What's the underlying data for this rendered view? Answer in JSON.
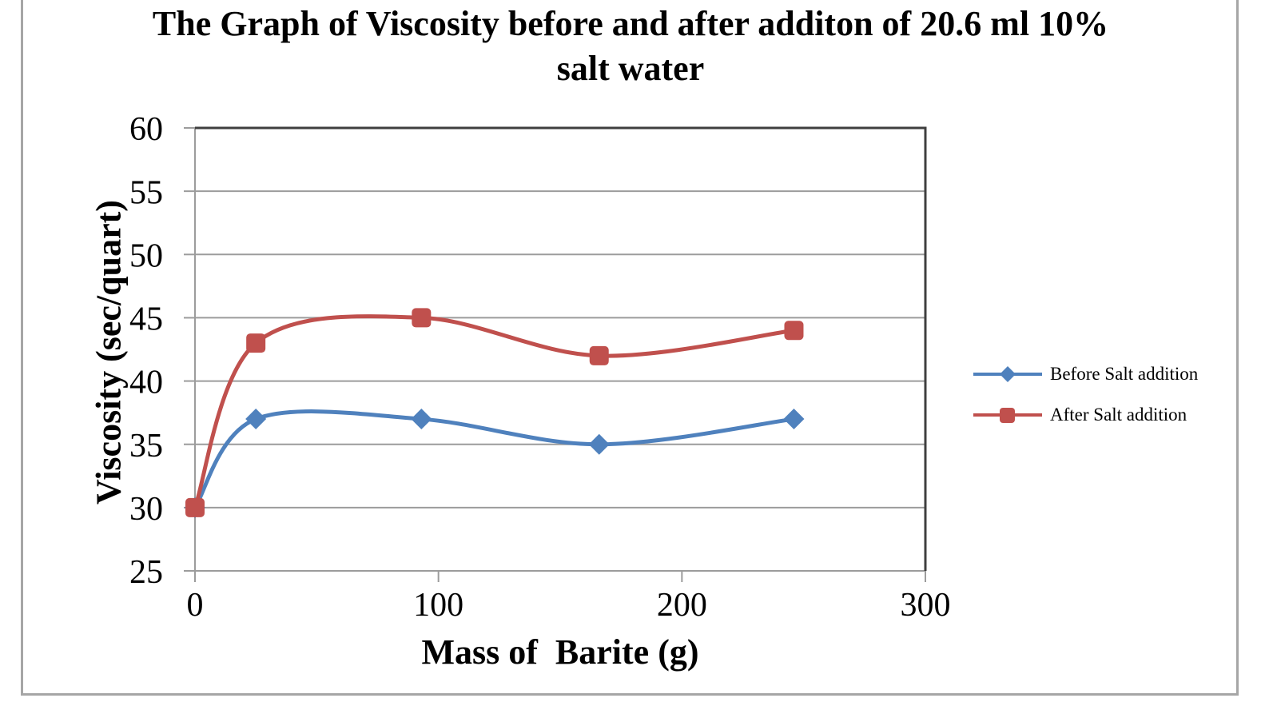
{
  "chart_data": {
    "type": "line",
    "title": "The Graph of Viscosity before and after additon of 20.6 ml 10% salt water",
    "title_line1": "The Graph of Viscosity before and after additon of 20.6 ml 10%",
    "title_line2": "salt water",
    "xlabel": "Mass of  Barite (g)",
    "ylabel": "Viscosity (sec/quart)",
    "xlim": [
      0,
      300
    ],
    "ylim": [
      25,
      60
    ],
    "xticks": [
      0,
      100,
      200,
      300
    ],
    "yticks": [
      25,
      30,
      35,
      40,
      45,
      50,
      55,
      60
    ],
    "grid": "horizontal",
    "smooth_lines": true,
    "legend_position": "right",
    "x": [
      0,
      25,
      93,
      166,
      246
    ],
    "series": [
      {
        "name": "Before Salt addition",
        "marker": "diamond",
        "color": "#4F81BD",
        "values": [
          30,
          37,
          37,
          35,
          37
        ]
      },
      {
        "name": "After Salt addition",
        "marker": "square",
        "color": "#C0504D",
        "values": [
          30,
          43,
          45,
          42,
          44
        ]
      }
    ],
    "colors": {
      "gridline": "#9C9C9C",
      "axis": "#9C9C9C",
      "plot_border": "#3F3F3F",
      "frame_border": "#A6A6A6",
      "text": "#000000"
    }
  }
}
